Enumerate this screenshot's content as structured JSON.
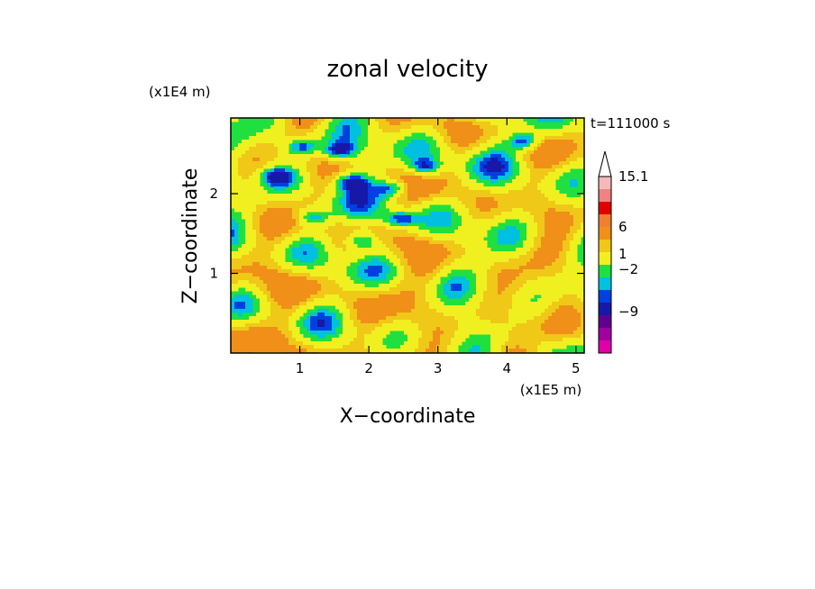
{
  "chart_data": {
    "type": "heatmap",
    "title": "zonal velocity",
    "xlabel": "X−coordinate",
    "ylabel": "Z−coordinate",
    "x_scale_label": "(x1E5 m)",
    "y_scale_label": "(x1E4 m)",
    "time_label": "t=111000 s",
    "xlim": [
      0,
      5.12
    ],
    "ylim": [
      0,
      2.95
    ],
    "x_ticks": [
      1,
      2,
      3,
      4,
      5
    ],
    "x_tick_labels": [
      "1",
      "2",
      "3",
      "4",
      "5"
    ],
    "y_ticks": [
      1,
      2
    ],
    "y_tick_labels": [
      "1",
      "2"
    ],
    "colorbar": {
      "levels_shown": [
        "15.1",
        "6",
        "1",
        "−2",
        "−9"
      ],
      "level_values": [
        15.1,
        6,
        1,
        -2,
        -9
      ],
      "colors": [
        "#f6b8b8",
        "#f08282",
        "#e00000",
        "#f08030",
        "#f09018",
        "#f0c818",
        "#f0f020",
        "#20e040",
        "#00c0e0",
        "#0040e0",
        "#1818a8",
        "#600090",
        "#a000a0",
        "#e000a8"
      ]
    },
    "field_description_values": {
      "dominant_positive": "yellow/orange bands (0 to 6 m/s)",
      "background": "green (-2 to 0 m/s)",
      "negative_cores": "blue patches (-9 to -2 m/s) in upper half"
    }
  }
}
